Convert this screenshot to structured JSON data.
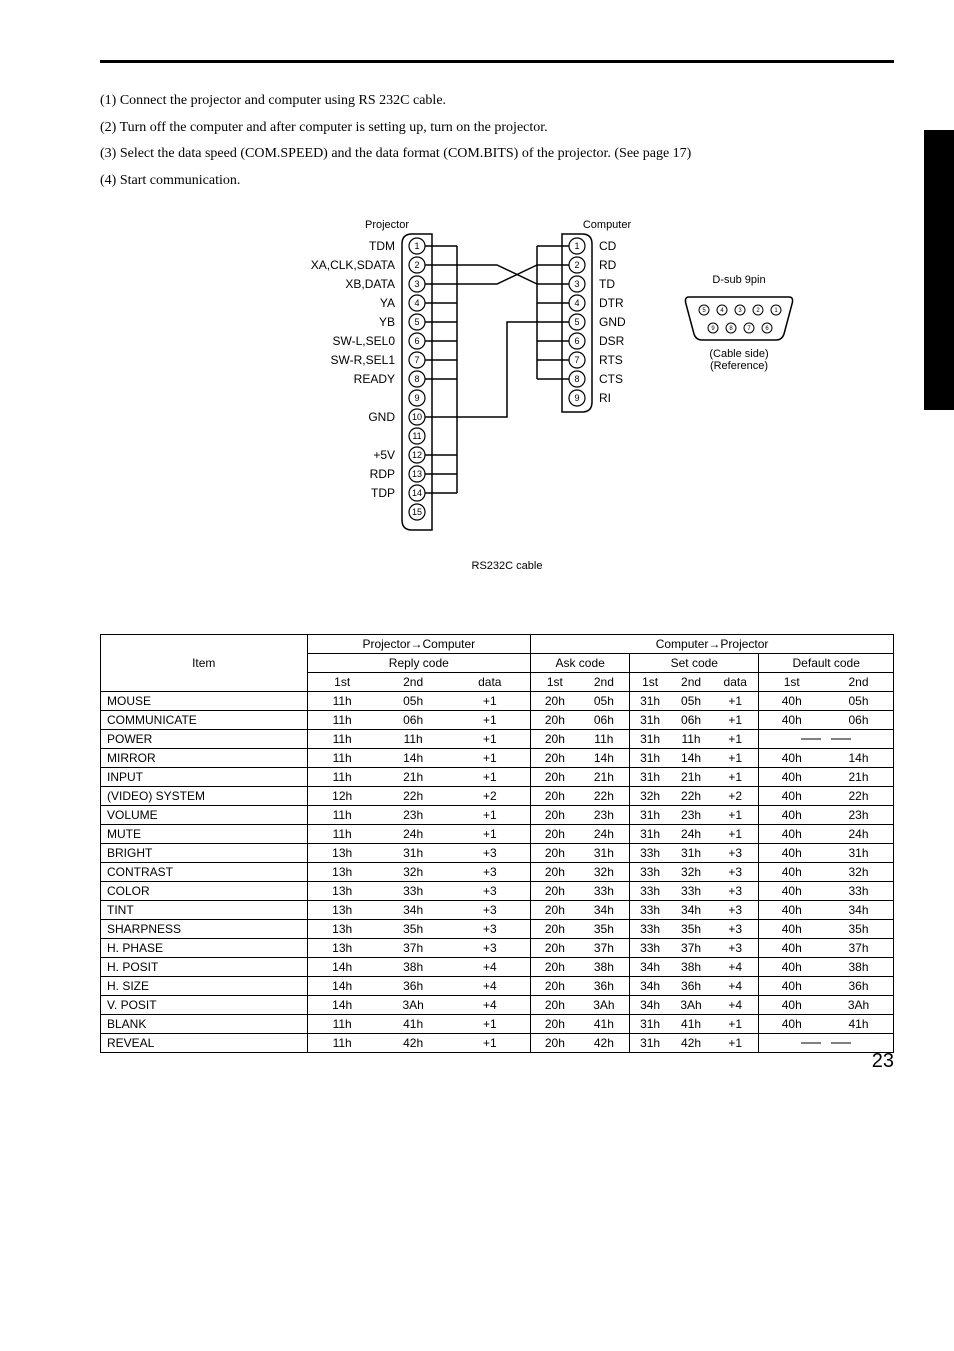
{
  "instructions": [
    "(1) Connect the projector and computer using RS 232C cable.",
    "(2) Turn off the computer and after computer is setting up, turn on the projector.",
    "(3) Select the data speed (COM.SPEED) and the data format (COM.BITS) of the projector. (See page 17)",
    "(4) Start communication."
  ],
  "diagram": {
    "projector_label": "Projector",
    "computer_label": "Computer",
    "cable_label": "RS232C cable",
    "projector_pins": [
      "TDM",
      "XA,CLK,SDATA",
      "XB,DATA",
      "YA",
      "YB",
      "SW-L,SEL0",
      "SW-R,SEL1",
      "READY",
      "",
      "GND",
      "",
      "+5V",
      "RDP",
      "TDP",
      ""
    ],
    "computer_pins": [
      "CD",
      "RD",
      "TD",
      "DTR",
      "GND",
      "DSR",
      "RTS",
      "CTS",
      "RI"
    ],
    "dsub": {
      "title": "D-sub 9pin",
      "line1": "(Cable side)",
      "line2": "(Reference)"
    }
  },
  "table": {
    "headers": {
      "item": "Item",
      "proj_comp": "Projector→Computer",
      "comp_proj": "Computer→Projector",
      "reply": "Reply code",
      "ask": "Ask code",
      "set": "Set code",
      "default": "Default code",
      "c1": "1st",
      "c2": "2nd",
      "cd": "data"
    },
    "rows": [
      {
        "item": "MOUSE",
        "r": [
          "11h",
          "05h",
          "+1"
        ],
        "a": [
          "20h",
          "05h"
        ],
        "s": [
          "31h",
          "05h",
          "+1"
        ],
        "d": [
          "40h",
          "05h"
        ]
      },
      {
        "item": "COMMUNICATE",
        "r": [
          "11h",
          "06h",
          "+1"
        ],
        "a": [
          "20h",
          "06h"
        ],
        "s": [
          "31h",
          "06h",
          "+1"
        ],
        "d": [
          "40h",
          "06h"
        ]
      },
      {
        "item": "POWER",
        "r": [
          "11h",
          "11h",
          "+1"
        ],
        "a": [
          "20h",
          "11h"
        ],
        "s": [
          "31h",
          "11h",
          "+1"
        ],
        "d": null
      },
      {
        "item": "MIRROR",
        "r": [
          "11h",
          "14h",
          "+1"
        ],
        "a": [
          "20h",
          "14h"
        ],
        "s": [
          "31h",
          "14h",
          "+1"
        ],
        "d": [
          "40h",
          "14h"
        ]
      },
      {
        "item": "INPUT",
        "r": [
          "11h",
          "21h",
          "+1"
        ],
        "a": [
          "20h",
          "21h"
        ],
        "s": [
          "31h",
          "21h",
          "+1"
        ],
        "d": [
          "40h",
          "21h"
        ]
      },
      {
        "item": "(VIDEO) SYSTEM",
        "r": [
          "12h",
          "22h",
          "+2"
        ],
        "a": [
          "20h",
          "22h"
        ],
        "s": [
          "32h",
          "22h",
          "+2"
        ],
        "d": [
          "40h",
          "22h"
        ]
      },
      {
        "item": "VOLUME",
        "r": [
          "11h",
          "23h",
          "+1"
        ],
        "a": [
          "20h",
          "23h"
        ],
        "s": [
          "31h",
          "23h",
          "+1"
        ],
        "d": [
          "40h",
          "23h"
        ]
      },
      {
        "item": "MUTE",
        "r": [
          "11h",
          "24h",
          "+1"
        ],
        "a": [
          "20h",
          "24h"
        ],
        "s": [
          "31h",
          "24h",
          "+1"
        ],
        "d": [
          "40h",
          "24h"
        ]
      },
      {
        "item": "BRIGHT",
        "r": [
          "13h",
          "31h",
          "+3"
        ],
        "a": [
          "20h",
          "31h"
        ],
        "s": [
          "33h",
          "31h",
          "+3"
        ],
        "d": [
          "40h",
          "31h"
        ]
      },
      {
        "item": "CONTRAST",
        "r": [
          "13h",
          "32h",
          "+3"
        ],
        "a": [
          "20h",
          "32h"
        ],
        "s": [
          "33h",
          "32h",
          "+3"
        ],
        "d": [
          "40h",
          "32h"
        ]
      },
      {
        "item": "COLOR",
        "r": [
          "13h",
          "33h",
          "+3"
        ],
        "a": [
          "20h",
          "33h"
        ],
        "s": [
          "33h",
          "33h",
          "+3"
        ],
        "d": [
          "40h",
          "33h"
        ]
      },
      {
        "item": "TINT",
        "r": [
          "13h",
          "34h",
          "+3"
        ],
        "a": [
          "20h",
          "34h"
        ],
        "s": [
          "33h",
          "34h",
          "+3"
        ],
        "d": [
          "40h",
          "34h"
        ]
      },
      {
        "item": "SHARPNESS",
        "r": [
          "13h",
          "35h",
          "+3"
        ],
        "a": [
          "20h",
          "35h"
        ],
        "s": [
          "33h",
          "35h",
          "+3"
        ],
        "d": [
          "40h",
          "35h"
        ]
      },
      {
        "item": "H. PHASE",
        "r": [
          "13h",
          "37h",
          "+3"
        ],
        "a": [
          "20h",
          "37h"
        ],
        "s": [
          "33h",
          "37h",
          "+3"
        ],
        "d": [
          "40h",
          "37h"
        ]
      },
      {
        "item": "H. POSIT",
        "r": [
          "14h",
          "38h",
          "+4"
        ],
        "a": [
          "20h",
          "38h"
        ],
        "s": [
          "34h",
          "38h",
          "+4"
        ],
        "d": [
          "40h",
          "38h"
        ]
      },
      {
        "item": "H. SIZE",
        "r": [
          "14h",
          "36h",
          "+4"
        ],
        "a": [
          "20h",
          "36h"
        ],
        "s": [
          "34h",
          "36h",
          "+4"
        ],
        "d": [
          "40h",
          "36h"
        ]
      },
      {
        "item": "V. POSIT",
        "r": [
          "14h",
          "3Ah",
          "+4"
        ],
        "a": [
          "20h",
          "3Ah"
        ],
        "s": [
          "34h",
          "3Ah",
          "+4"
        ],
        "d": [
          "40h",
          "3Ah"
        ]
      },
      {
        "item": "BLANK",
        "r": [
          "11h",
          "41h",
          "+1"
        ],
        "a": [
          "20h",
          "41h"
        ],
        "s": [
          "31h",
          "41h",
          "+1"
        ],
        "d": [
          "40h",
          "41h"
        ]
      },
      {
        "item": "REVEAL",
        "r": [
          "11h",
          "42h",
          "+1"
        ],
        "a": [
          "20h",
          "42h"
        ],
        "s": [
          "31h",
          "42h",
          "+1"
        ],
        "d": null
      }
    ]
  },
  "pagenum": "23"
}
